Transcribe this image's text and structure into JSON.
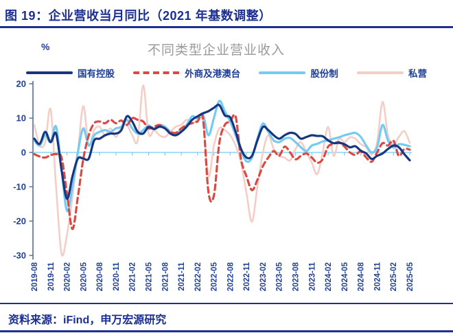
{
  "header": {
    "title": "图 19：企业营收当月同比（2021 年基数调整）"
  },
  "footer": {
    "source": "资料来源：iFind，申万宏源研究"
  },
  "colors": {
    "header_navy": "#1b2f91",
    "axis": "#4a6fa5",
    "zero_line": "#74c9f0",
    "tick_text": "#1e3f94",
    "subtitle_gray": "#9a9a9a",
    "soe_navy": "#17367f",
    "foreign_red": "#db4a42",
    "joint_stock_cyan": "#74cbf1",
    "private_pink": "#f5cdc7"
  },
  "chart_data": {
    "type": "line",
    "title": "不同类型企业营业收入",
    "ylabel": "%",
    "ylim": [
      -30,
      20
    ],
    "yticks": [
      20,
      10,
      0,
      -10,
      -20,
      -30
    ],
    "grid": false,
    "legend_position": "top",
    "x_label_every": 3,
    "x_labels": [
      "2019-08",
      "2019-11",
      "2020-02",
      "2020-05",
      "2020-08",
      "2020-11",
      "2021-02",
      "2021-05",
      "2021-08",
      "2021-11",
      "2022-02",
      "2022-05",
      "2022-08",
      "2022-11",
      "2023-02",
      "2023-05",
      "2023-08",
      "2023-11",
      "2024-02",
      "2024-05",
      "2024-08",
      "2024-11",
      "2025-02",
      "2025-05"
    ],
    "x": [
      "2019-08",
      "2019-09",
      "2019-10",
      "2019-11",
      "2019-12",
      "2020-01",
      "2020-02",
      "2020-03",
      "2020-04",
      "2020-05",
      "2020-06",
      "2020-07",
      "2020-08",
      "2020-09",
      "2020-10",
      "2020-11",
      "2020-12",
      "2021-01",
      "2021-02",
      "2021-03",
      "2021-04",
      "2021-05",
      "2021-06",
      "2021-07",
      "2021-08",
      "2021-09",
      "2021-10",
      "2021-11",
      "2021-12",
      "2022-01",
      "2022-02",
      "2022-03",
      "2022-04",
      "2022-05",
      "2022-06",
      "2022-07",
      "2022-08",
      "2022-09",
      "2022-10",
      "2022-11",
      "2022-12",
      "2023-01",
      "2023-02",
      "2023-03",
      "2023-04",
      "2023-05",
      "2023-06",
      "2023-07",
      "2023-08",
      "2023-09",
      "2023-10",
      "2023-11",
      "2023-12",
      "2024-01",
      "2024-02",
      "2024-03",
      "2024-04",
      "2024-05",
      "2024-06",
      "2024-07",
      "2024-08",
      "2024-09",
      "2024-10",
      "2024-11",
      "2024-12",
      "2025-01",
      "2025-02",
      "2025-03",
      "2025-04",
      "2025-05"
    ],
    "series": [
      {
        "id": "soe",
        "name": "国有控股",
        "color": "#17367f",
        "style": "solid",
        "width": 3.2,
        "values": [
          4.0,
          2.5,
          6.0,
          3.0,
          5.5,
          -5.0,
          -13.5,
          -7.0,
          -1.8,
          -1.8,
          -1.8,
          3.5,
          4.0,
          5.0,
          5.5,
          5.5,
          6.5,
          10.5,
          9.0,
          6.0,
          5.5,
          7.4,
          6.8,
          7.5,
          7.0,
          5.5,
          5.0,
          6.0,
          7.5,
          9.5,
          10.5,
          11.4,
          12.0,
          13.0,
          13.8,
          10.8,
          10.2,
          6.0,
          1.0,
          -1.5,
          -1.0,
          3.5,
          7.4,
          6.5,
          5.0,
          4.0,
          5.0,
          5.7,
          5.4,
          4.0,
          4.5,
          5.0,
          4.8,
          4.7,
          3.5,
          2.7,
          2.8,
          2.4,
          1.5,
          1.8,
          0.5,
          -0.3,
          -1.9,
          -1.0,
          -0.3,
          1.0,
          2.0,
          1.5,
          -0.5,
          -2.3
        ]
      },
      {
        "id": "foreign-hk-mo-tw",
        "name": "外商及港澳台",
        "color": "#db4a42",
        "style": "dashed",
        "width": 3.2,
        "values": [
          -0.5,
          -1.2,
          -1.5,
          -0.8,
          -0.5,
          -1.5,
          -12.0,
          -22.3,
          -13.0,
          -2.0,
          5.0,
          8.5,
          9.0,
          8.5,
          9.5,
          8.5,
          9.3,
          8.0,
          10.0,
          9.5,
          9.0,
          7.0,
          7.5,
          8.0,
          7.0,
          6.0,
          5.7,
          7.0,
          8.0,
          8.5,
          9.0,
          9.8,
          -11.5,
          -12.6,
          2.7,
          8.0,
          9.0,
          10.4,
          -2.0,
          -7.0,
          -11.0,
          -8.0,
          -4.0,
          -1.5,
          0.4,
          -1.0,
          1.7,
          0.0,
          -2.0,
          -1.0,
          -0.3,
          -1.5,
          -3.0,
          -2.0,
          1.7,
          2.5,
          3.0,
          1.7,
          0.0,
          -0.7,
          0.3,
          -1.5,
          -2.7,
          0.0,
          2.7,
          2.0,
          3.4,
          -1.0,
          1.0,
          0.8
        ]
      },
      {
        "id": "joint-stock",
        "name": "股份制",
        "color": "#74cbf1",
        "style": "solid",
        "width": 3.2,
        "values": [
          3.5,
          2.0,
          5.0,
          3.0,
          7.5,
          -5.0,
          -17.0,
          -10.0,
          0.0,
          7.0,
          2.0,
          5.0,
          6.0,
          6.5,
          6.0,
          7.0,
          7.5,
          9.5,
          7.0,
          5.5,
          6.5,
          7.8,
          7.0,
          8.0,
          7.5,
          6.0,
          5.5,
          6.5,
          8.0,
          10.5,
          10.0,
          11.0,
          5.0,
          10.0,
          15.0,
          12.0,
          9.0,
          5.0,
          0.5,
          -2.6,
          -1.5,
          4.0,
          8.4,
          6.0,
          3.5,
          3.0,
          4.0,
          4.2,
          3.0,
          1.5,
          0.4,
          2.0,
          2.5,
          3.2,
          3.5,
          4.0,
          4.4,
          5.0,
          5.4,
          5.7,
          4.5,
          2.0,
          0.0,
          1.5,
          8.0,
          3.5,
          1.4,
          2.4,
          2.2,
          1.8
        ]
      },
      {
        "id": "private",
        "name": "私营",
        "color": "#f5cdc7",
        "style": "solid",
        "width": 2.6,
        "values": [
          8.0,
          2.0,
          3.0,
          12.5,
          -10.0,
          -29.5,
          -24.0,
          -13.0,
          0.0,
          13.5,
          2.0,
          6.5,
          7.5,
          5.0,
          7.0,
          4.5,
          7.5,
          8.0,
          5.0,
          3.5,
          19.5,
          5.5,
          6.5,
          5.0,
          4.5,
          6.0,
          7.5,
          8.0,
          9.5,
          8.5,
          9.5,
          8.8,
          -7.0,
          2.0,
          7.0,
          6.5,
          5.0,
          2.0,
          -3.0,
          -12.0,
          -20.2,
          -10.0,
          0.0,
          5.0,
          1.0,
          -1.0,
          -1.5,
          -2.3,
          1.0,
          3.0,
          0.0,
          -3.0,
          -6.3,
          0.0,
          7.4,
          -1.0,
          4.0,
          3.0,
          4.4,
          4.0,
          2.4,
          1.5,
          -0.6,
          3.0,
          14.7,
          5.0,
          2.4,
          4.5,
          6.2,
          2.8
        ]
      }
    ]
  }
}
